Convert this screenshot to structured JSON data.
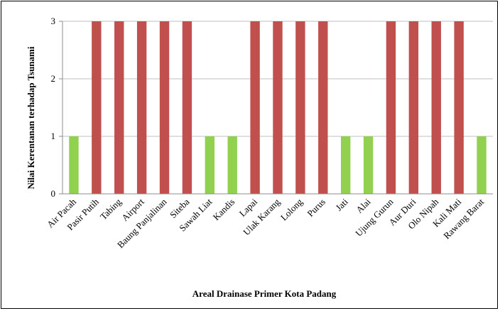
{
  "chart_data": {
    "type": "bar",
    "title": "",
    "xlabel": "Areal Drainase Primer Kota Padang",
    "ylabel": "Nilai Kerentanan terhadap Tsunami",
    "ylim": [
      0,
      3
    ],
    "yticks": [
      "0",
      "1",
      "2",
      "3"
    ],
    "grid": true,
    "legend": "none",
    "categories": [
      "Air Pacah",
      "Pasir Putih",
      "Tabing",
      "Airport",
      "Baung Panjalinan",
      "Siteba",
      "Sawah Liat",
      "Kandis",
      "Lapai",
      "Ulak Karang",
      "Lolong",
      "Purus",
      "Jati",
      "Alai",
      "Ujung Gurun",
      "Aur Duri",
      "Olo Nipah",
      "Kali Mati",
      "Rawang Barat"
    ],
    "values": [
      1,
      3,
      3,
      3,
      3,
      3,
      1,
      1,
      3,
      3,
      3,
      3,
      1,
      1,
      3,
      3,
      3,
      3,
      1
    ],
    "colors": {
      "low": "#92d050",
      "high": "#c0504d"
    }
  }
}
